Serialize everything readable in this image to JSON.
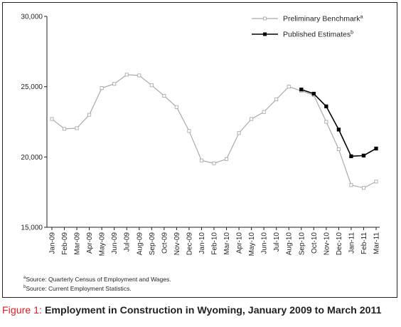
{
  "chart_data": {
    "type": "line",
    "categories": [
      "Jan-09",
      "Feb-09",
      "Mar-09",
      "Apr-09",
      "May-09",
      "Jun-09",
      "Jul-09",
      "Aug-09",
      "Sep-09",
      "Oct-09",
      "Nov-09",
      "Dec-09",
      "Jan-10",
      "Feb-10",
      "Mar-10",
      "Apr-10",
      "May-10",
      "Jun-10",
      "Jul-10",
      "Aug-10",
      "Sep-10",
      "Oct-10",
      "Nov-10",
      "Dec-10",
      "Jan-11",
      "Feb-11",
      "Mar-11"
    ],
    "series": [
      {
        "name": "Preliminary Benchmark",
        "name_footnote": "a",
        "color": "#aaaaaa",
        "marker": "hollow-square",
        "values": [
          22700,
          22000,
          22050,
          23000,
          24900,
          25200,
          25850,
          25800,
          25100,
          24350,
          23550,
          21850,
          19750,
          19550,
          19850,
          21700,
          22700,
          23200,
          24100,
          25000,
          24700,
          24400,
          22500,
          20550,
          18000,
          17800,
          18250
        ]
      },
      {
        "name": "Published Estimates",
        "name_footnote": "b",
        "color": "#000000",
        "marker": "filled-square",
        "values": [
          null,
          null,
          null,
          null,
          null,
          null,
          null,
          null,
          null,
          null,
          null,
          null,
          null,
          null,
          null,
          null,
          null,
          null,
          null,
          null,
          24800,
          24500,
          23600,
          21950,
          20050,
          20100,
          20600
        ]
      }
    ],
    "ylim": [
      15000,
      30000
    ],
    "yticks": [
      "15,000",
      "20,000",
      "25,000",
      "30,000"
    ],
    "grid": false,
    "legend": "top-right"
  },
  "footnotes": [
    {
      "mark": "a",
      "text": "Source: Quarterly Census of Employment and Wages."
    },
    {
      "mark": "b",
      "text": "Source: Current Employment Statistics."
    }
  ],
  "caption": {
    "label": "Figure 1:",
    "title": "Employment in Construction in Wyoming, January 2009 to March 2011"
  }
}
